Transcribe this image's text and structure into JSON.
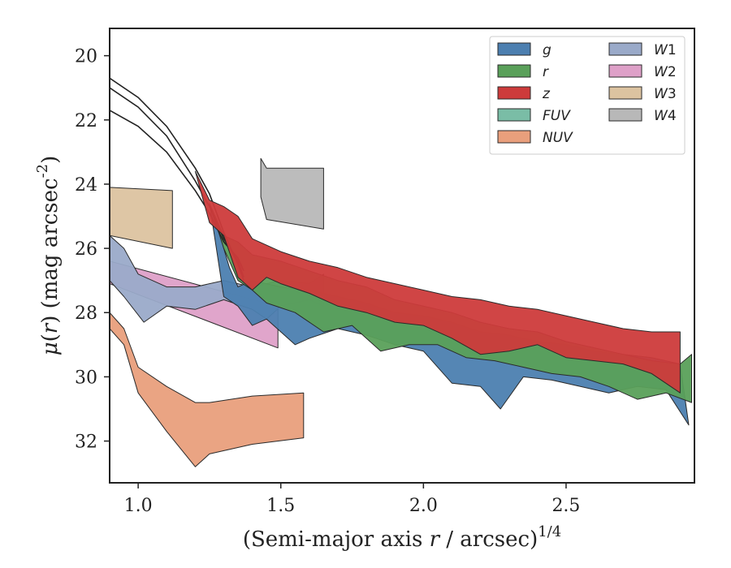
{
  "chart_data": {
    "type": "area",
    "xlabel": "(Semi-major axis r / arcsec)^1/4",
    "ylabel": "μ(r) (mag arcsec^-2)",
    "xlim": [
      0.9,
      2.95
    ],
    "ylim": [
      33.3,
      19.15
    ],
    "y_inverted": true,
    "grid": false,
    "legend_position": "top-right",
    "xticks": [
      "1.0",
      "1.5",
      "2.0",
      "2.5"
    ],
    "xtick_values": [
      1.0,
      1.5,
      2.0,
      2.5
    ],
    "yticks": [
      "20",
      "22",
      "24",
      "26",
      "28",
      "30",
      "32"
    ],
    "ytick_values": [
      20,
      22,
      24,
      26,
      28,
      30,
      32
    ],
    "series": [
      {
        "name": "g",
        "color": "#4c7fb0",
        "upper": [
          [
            1.25,
            24.6
          ],
          [
            1.28,
            25.3
          ],
          [
            1.3,
            26.0
          ],
          [
            1.32,
            26.6
          ],
          [
            1.35,
            27.2
          ],
          [
            1.4,
            27.0
          ],
          [
            1.5,
            27.2
          ],
          [
            1.6,
            27.3
          ],
          [
            1.7,
            27.5
          ],
          [
            1.8,
            27.7
          ],
          [
            1.9,
            28.0
          ],
          [
            2.0,
            28.1
          ],
          [
            2.1,
            28.3
          ],
          [
            2.2,
            28.6
          ],
          [
            2.3,
            28.7
          ],
          [
            2.4,
            28.9
          ],
          [
            2.5,
            29.0
          ],
          [
            2.6,
            29.2
          ],
          [
            2.7,
            29.3
          ],
          [
            2.8,
            29.4
          ],
          [
            2.9,
            29.6
          ]
        ],
        "lower": [
          [
            2.93,
            31.5
          ],
          [
            2.85,
            30.4
          ],
          [
            2.75,
            30.3
          ],
          [
            2.65,
            30.5
          ],
          [
            2.55,
            30.3
          ],
          [
            2.45,
            30.1
          ],
          [
            2.35,
            30.0
          ],
          [
            2.27,
            31.0
          ],
          [
            2.2,
            30.3
          ],
          [
            2.1,
            30.2
          ],
          [
            2.0,
            29.2
          ],
          [
            1.9,
            29.0
          ],
          [
            1.8,
            28.7
          ],
          [
            1.7,
            28.5
          ],
          [
            1.6,
            28.8
          ],
          [
            1.55,
            29.0
          ],
          [
            1.45,
            28.2
          ],
          [
            1.4,
            28.4
          ],
          [
            1.35,
            27.8
          ],
          [
            1.3,
            27.5
          ],
          [
            1.25,
            24.6
          ]
        ]
      },
      {
        "name": "r",
        "color": "#5aa05a",
        "upper": [
          [
            1.25,
            24.6
          ],
          [
            1.3,
            25.6
          ],
          [
            1.35,
            25.8
          ],
          [
            1.4,
            26.2
          ],
          [
            1.5,
            26.4
          ],
          [
            1.6,
            26.7
          ],
          [
            1.7,
            27.0
          ],
          [
            1.8,
            27.2
          ],
          [
            1.9,
            27.6
          ],
          [
            2.0,
            27.8
          ],
          [
            2.1,
            28.0
          ],
          [
            2.2,
            28.3
          ],
          [
            2.3,
            28.5
          ],
          [
            2.4,
            28.6
          ],
          [
            2.5,
            28.9
          ],
          [
            2.6,
            29.1
          ],
          [
            2.7,
            29.3
          ],
          [
            2.8,
            29.5
          ],
          [
            2.9,
            29.6
          ],
          [
            2.94,
            29.3
          ]
        ],
        "lower": [
          [
            2.94,
            30.8
          ],
          [
            2.85,
            30.5
          ],
          [
            2.75,
            30.7
          ],
          [
            2.65,
            30.3
          ],
          [
            2.55,
            30.0
          ],
          [
            2.45,
            29.9
          ],
          [
            2.35,
            29.7
          ],
          [
            2.25,
            29.5
          ],
          [
            2.15,
            29.4
          ],
          [
            2.05,
            29.0
          ],
          [
            1.95,
            29.0
          ],
          [
            1.85,
            29.2
          ],
          [
            1.75,
            28.4
          ],
          [
            1.65,
            28.6
          ],
          [
            1.55,
            28.0
          ],
          [
            1.45,
            27.7
          ],
          [
            1.4,
            27.3
          ],
          [
            1.35,
            27.0
          ],
          [
            1.3,
            26.0
          ],
          [
            1.25,
            24.6
          ]
        ]
      },
      {
        "name": "z",
        "color": "#cd3b3b",
        "upper": [
          [
            1.2,
            23.6
          ],
          [
            1.25,
            24.5
          ],
          [
            1.3,
            24.7
          ],
          [
            1.35,
            25.0
          ],
          [
            1.4,
            25.7
          ],
          [
            1.5,
            26.1
          ],
          [
            1.6,
            26.4
          ],
          [
            1.7,
            26.6
          ],
          [
            1.8,
            26.9
          ],
          [
            1.9,
            27.1
          ],
          [
            2.0,
            27.3
          ],
          [
            2.1,
            27.5
          ],
          [
            2.2,
            27.6
          ],
          [
            2.3,
            27.8
          ],
          [
            2.4,
            27.9
          ],
          [
            2.5,
            28.1
          ],
          [
            2.6,
            28.3
          ],
          [
            2.7,
            28.5
          ],
          [
            2.8,
            28.6
          ],
          [
            2.9,
            28.6
          ]
        ],
        "lower": [
          [
            2.9,
            30.5
          ],
          [
            2.8,
            29.9
          ],
          [
            2.7,
            29.6
          ],
          [
            2.6,
            29.5
          ],
          [
            2.5,
            29.4
          ],
          [
            2.4,
            29.0
          ],
          [
            2.3,
            29.2
          ],
          [
            2.2,
            29.3
          ],
          [
            2.1,
            28.8
          ],
          [
            2.0,
            28.4
          ],
          [
            1.9,
            28.3
          ],
          [
            1.8,
            28.0
          ],
          [
            1.7,
            27.8
          ],
          [
            1.6,
            27.4
          ],
          [
            1.5,
            27.1
          ],
          [
            1.45,
            26.9
          ],
          [
            1.4,
            27.3
          ],
          [
            1.35,
            26.9
          ],
          [
            1.3,
            25.6
          ],
          [
            1.25,
            25.2
          ],
          [
            1.2,
            23.6
          ]
        ]
      },
      {
        "name": "FUV",
        "color": "#7abda6",
        "upper": [],
        "lower": []
      },
      {
        "name": "NUV",
        "color": "#e99f7c",
        "upper": [
          [
            0.9,
            28.0
          ],
          [
            0.95,
            28.5
          ],
          [
            1.0,
            29.7
          ],
          [
            1.1,
            30.3
          ],
          [
            1.2,
            30.8
          ],
          [
            1.25,
            30.8
          ],
          [
            1.4,
            30.6
          ],
          [
            1.58,
            30.5
          ]
        ],
        "lower": [
          [
            1.58,
            31.9
          ],
          [
            1.4,
            32.1
          ],
          [
            1.25,
            32.4
          ],
          [
            1.2,
            32.8
          ],
          [
            1.1,
            31.7
          ],
          [
            1.0,
            30.5
          ],
          [
            0.95,
            29.0
          ],
          [
            0.9,
            28.5
          ]
        ]
      },
      {
        "name": "W1",
        "color": "#9aaac9",
        "upper": [
          [
            0.9,
            25.6
          ],
          [
            0.95,
            26.0
          ],
          [
            1.0,
            26.8
          ],
          [
            1.1,
            27.2
          ],
          [
            1.2,
            27.2
          ],
          [
            1.3,
            27.0
          ],
          [
            1.4,
            27.2
          ],
          [
            1.5,
            27.0
          ],
          [
            1.6,
            27.1
          ],
          [
            1.65,
            26.8
          ]
        ],
        "lower": [
          [
            1.65,
            27.8
          ],
          [
            1.6,
            27.6
          ],
          [
            1.5,
            27.8
          ],
          [
            1.45,
            28.2
          ],
          [
            1.4,
            27.9
          ],
          [
            1.3,
            27.6
          ],
          [
            1.2,
            27.9
          ],
          [
            1.1,
            27.8
          ],
          [
            1.02,
            28.3
          ],
          [
            0.95,
            27.5
          ],
          [
            0.9,
            27.0
          ]
        ]
      },
      {
        "name": "W2",
        "color": "#dea0c8",
        "upper": [
          [
            0.9,
            26.4
          ],
          [
            1.49,
            27.8
          ]
        ],
        "lower": [
          [
            1.49,
            29.1
          ],
          [
            0.9,
            27.1
          ]
        ]
      },
      {
        "name": "W3",
        "color": "#dcc3a0",
        "upper": [
          [
            0.9,
            24.1
          ],
          [
            1.12,
            24.2
          ]
        ],
        "lower": [
          [
            1.12,
            26.0
          ],
          [
            0.9,
            25.6
          ]
        ]
      },
      {
        "name": "W4",
        "color": "#b8b8b8",
        "upper": [
          [
            1.43,
            23.2
          ],
          [
            1.45,
            23.5
          ],
          [
            1.65,
            23.5
          ]
        ],
        "lower": [
          [
            1.65,
            25.4
          ],
          [
            1.45,
            25.1
          ],
          [
            1.43,
            24.4
          ]
        ]
      }
    ],
    "model_curves": [
      {
        "color": "#222222",
        "points": [
          [
            0.9,
            20.7
          ],
          [
            1.0,
            21.3
          ],
          [
            1.1,
            22.2
          ],
          [
            1.2,
            23.5
          ],
          [
            1.25,
            24.3
          ],
          [
            1.3,
            25.5
          ],
          [
            1.35,
            26.5
          ],
          [
            1.37,
            27.0
          ]
        ]
      },
      {
        "color": "#222222",
        "points": [
          [
            0.9,
            21.0
          ],
          [
            1.0,
            21.6
          ],
          [
            1.1,
            22.5
          ],
          [
            1.2,
            23.9
          ],
          [
            1.25,
            24.7
          ],
          [
            1.3,
            25.7
          ],
          [
            1.35,
            26.4
          ],
          [
            1.37,
            26.9
          ]
        ]
      },
      {
        "color": "#222222",
        "points": [
          [
            0.9,
            21.7
          ],
          [
            1.0,
            22.2
          ],
          [
            1.1,
            23.0
          ],
          [
            1.2,
            24.2
          ],
          [
            1.25,
            24.9
          ],
          [
            1.3,
            25.8
          ],
          [
            1.35,
            26.3
          ],
          [
            1.37,
            26.7
          ]
        ]
      }
    ],
    "legend_columns": [
      [
        "g",
        "r",
        "z",
        "FUV",
        "NUV"
      ],
      [
        "W1",
        "W2",
        "W3",
        "W4"
      ]
    ]
  }
}
